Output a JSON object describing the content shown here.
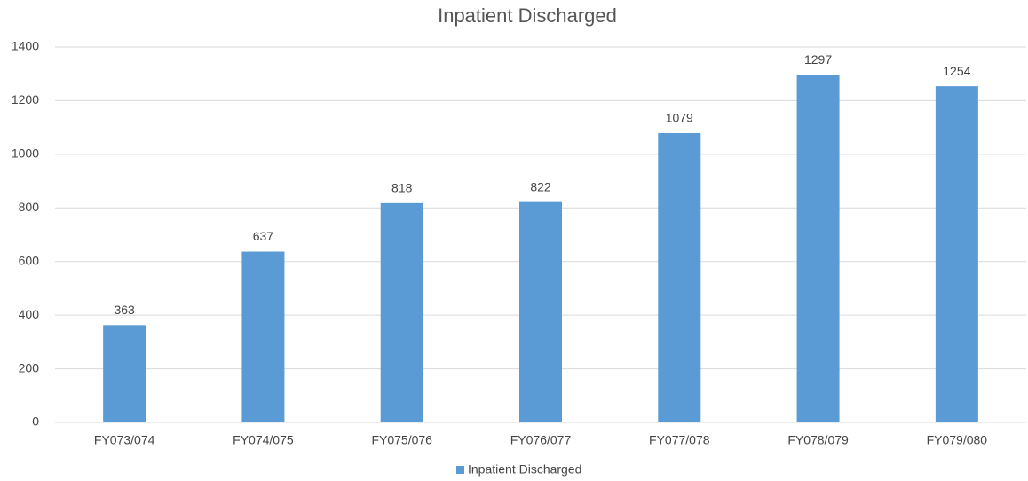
{
  "chart_data": {
    "type": "bar",
    "title": "Inpatient Discharged",
    "categories": [
      "FY073/074",
      "FY074/075",
      "FY075/076",
      "FY076/077",
      "FY077/078",
      "FY078/079",
      "FY079/080"
    ],
    "series": [
      {
        "name": "Inpatient Discharged",
        "color": "#5b9bd5",
        "values": [
          363,
          637,
          818,
          822,
          1079,
          1297,
          1254
        ]
      }
    ],
    "ylim": [
      0,
      1400
    ],
    "yticks": [
      0,
      200,
      400,
      600,
      800,
      1000,
      1200,
      1400
    ],
    "grid": true,
    "legend": "bottom"
  }
}
